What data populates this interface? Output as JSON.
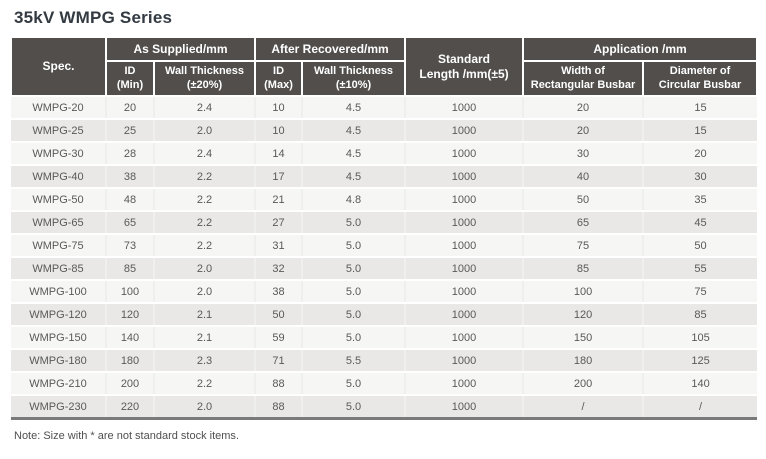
{
  "page": {
    "title": "35kV WMPG Series",
    "note": "Note: Size with * are not standard stock items."
  },
  "table": {
    "header": {
      "spec": "Spec.",
      "as_supplied": "As Supplied/mm",
      "after_recovered": "After Recovered/mm",
      "standard_length_line1": "Standard",
      "standard_length_line2": "Length /mm(±5)",
      "application": "Application /mm",
      "id_min_line1": "ID",
      "id_min_line2": "(Min)",
      "wall_thickness_20_line1": "Wall Thickness",
      "wall_thickness_20_line2": "(±20%)",
      "id_max_line1": "ID",
      "id_max_line2": "(Max)",
      "wall_thickness_10_line1": "Wall Thickness",
      "wall_thickness_10_line2": "(±10%)",
      "width_rect_line1": "Width of",
      "width_rect_line2": "Rectangular Busbar",
      "diameter_circ_line1": "Diameter of",
      "diameter_circ_line2": "Circular Busbar"
    },
    "rows": [
      [
        "WMPG-20",
        "20",
        "2.4",
        "10",
        "4.5",
        "1000",
        "20",
        "15"
      ],
      [
        "WMPG-25",
        "25",
        "2.0",
        "10",
        "4.5",
        "1000",
        "20",
        "15"
      ],
      [
        "WMPG-30",
        "28",
        "2.4",
        "14",
        "4.5",
        "1000",
        "30",
        "20"
      ],
      [
        "WMPG-40",
        "38",
        "2.2",
        "17",
        "4.5",
        "1000",
        "40",
        "30"
      ],
      [
        "WMPG-50",
        "48",
        "2.2",
        "21",
        "4.8",
        "1000",
        "50",
        "35"
      ],
      [
        "WMPG-65",
        "65",
        "2.2",
        "27",
        "5.0",
        "1000",
        "65",
        "45"
      ],
      [
        "WMPG-75",
        "73",
        "2.2",
        "31",
        "5.0",
        "1000",
        "75",
        "50"
      ],
      [
        "WMPG-85",
        "85",
        "2.0",
        "32",
        "5.0",
        "1000",
        "85",
        "55"
      ],
      [
        "WMPG-100",
        "100",
        "2.0",
        "38",
        "5.0",
        "1000",
        "100",
        "75"
      ],
      [
        "WMPG-120",
        "120",
        "2.1",
        "50",
        "5.0",
        "1000",
        "120",
        "85"
      ],
      [
        "WMPG-150",
        "140",
        "2.1",
        "59",
        "5.0",
        "1000",
        "150",
        "105"
      ],
      [
        "WMPG-180",
        "180",
        "2.3",
        "71",
        "5.5",
        "1000",
        "180",
        "125"
      ],
      [
        "WMPG-210",
        "200",
        "2.2",
        "88",
        "5.0",
        "1000",
        "200",
        "140"
      ],
      [
        "WMPG-230",
        "220",
        "2.0",
        "88",
        "5.0",
        "1000",
        "/",
        "/"
      ]
    ]
  },
  "colors": {
    "header_bg": "#514e4b",
    "header_text": "#ffffff",
    "row_light": "#f6f6f5",
    "row_dark": "#e9e8e7",
    "body_text": "#595959",
    "title_color": "#333a42",
    "note_color": "#4f4f4f",
    "bottom_border": "#7a7a7a"
  }
}
